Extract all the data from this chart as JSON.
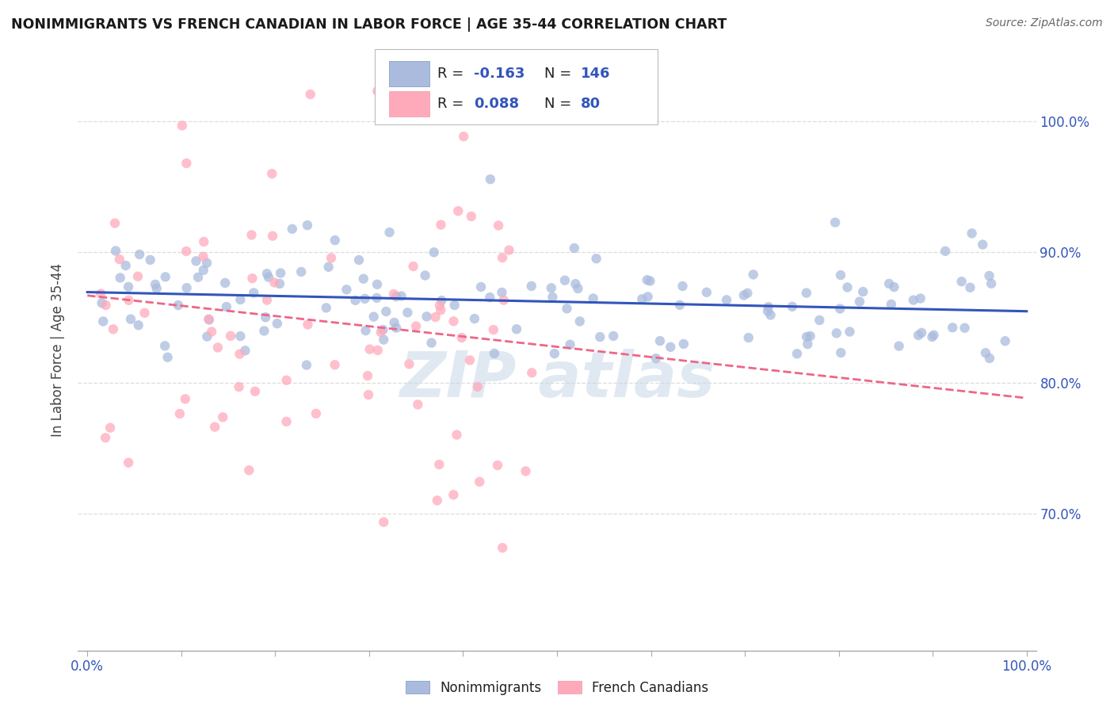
{
  "title": "NONIMMIGRANTS VS FRENCH CANADIAN IN LABOR FORCE | AGE 35-44 CORRELATION CHART",
  "source": "Source: ZipAtlas.com",
  "ylabel": "In Labor Force | Age 35-44",
  "xlim": [
    -0.01,
    1.01
  ],
  "ylim": [
    0.595,
    1.055
  ],
  "yticks": [
    0.7,
    0.8,
    0.9,
    1.0
  ],
  "ytick_labels": [
    "70.0%",
    "80.0%",
    "90.0%",
    "100.0%"
  ],
  "xticks": [
    0.0,
    0.1,
    0.2,
    0.3,
    0.4,
    0.5,
    0.6,
    0.7,
    0.8,
    0.9,
    1.0
  ],
  "xtick_labels": [
    "0.0%",
    "",
    "",
    "",
    "",
    "",
    "",
    "",
    "",
    "",
    "100.0%"
  ],
  "R_blue": -0.163,
  "N_blue": 146,
  "R_pink": 0.088,
  "N_pink": 80,
  "blue_scatter_color": "#aabbdd",
  "pink_scatter_color": "#ffaabb",
  "blue_line_color": "#3355bb",
  "pink_line_color": "#ee6688",
  "label_color": "#3355bb",
  "background_color": "#ffffff",
  "grid_color": "#dddddd",
  "watermark_color": "#c8d8e8",
  "scatter_alpha": 0.75,
  "scatter_size": 80
}
